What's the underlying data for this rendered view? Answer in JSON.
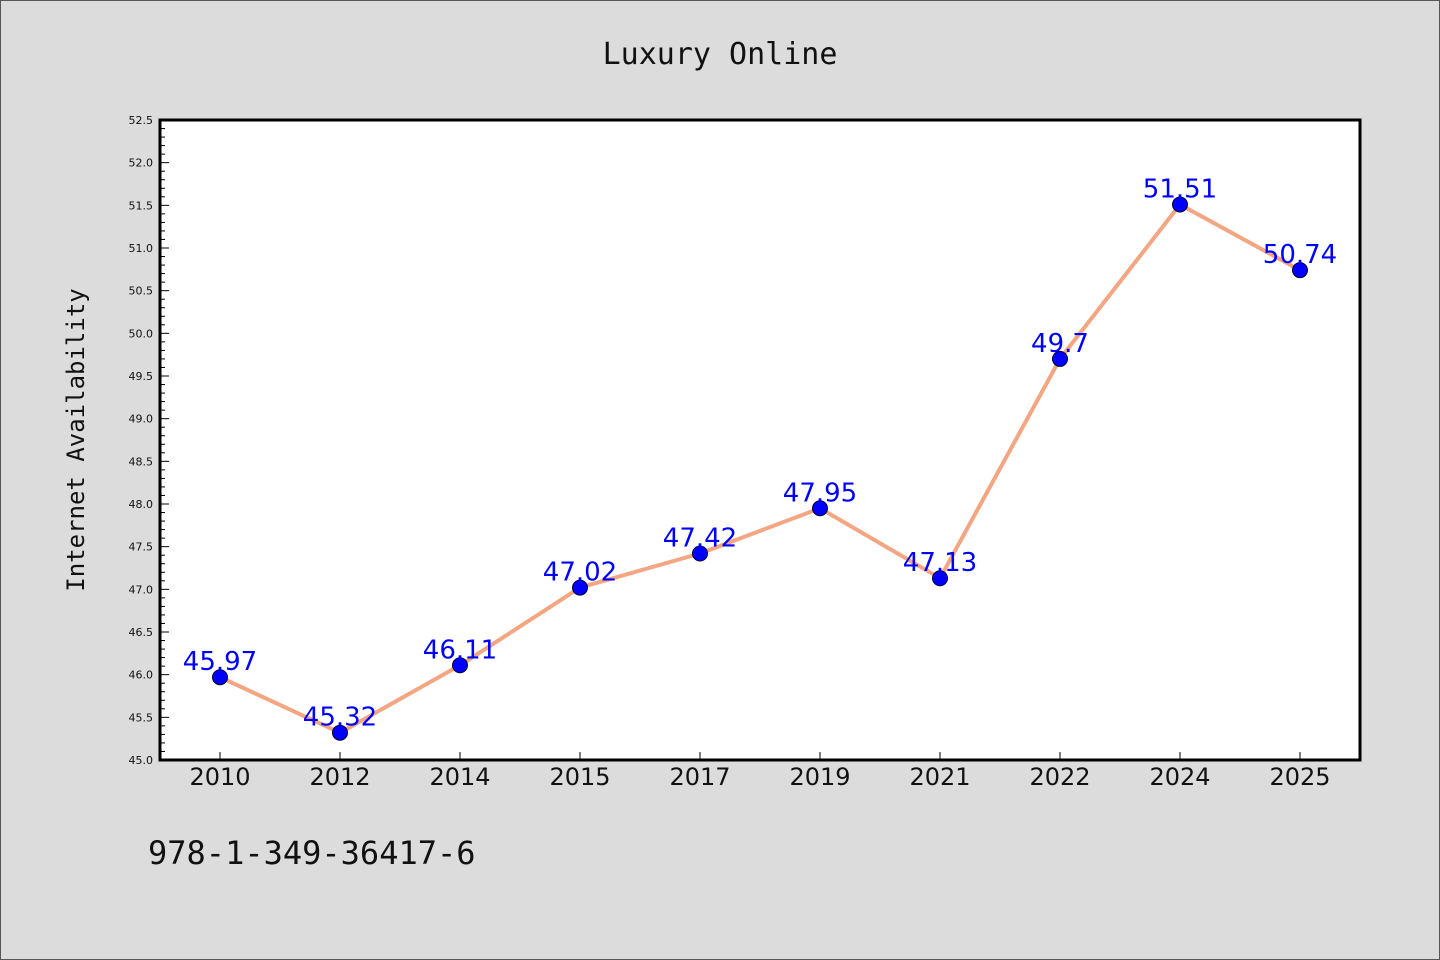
{
  "chart_data": {
    "type": "line",
    "title": "Luxury Online",
    "xlabel": "",
    "ylabel": "Internet Availability",
    "categories": [
      "2010",
      "2012",
      "2014",
      "2015",
      "2017",
      "2019",
      "2021",
      "2022",
      "2024",
      "2025"
    ],
    "series": [
      {
        "values": [
          45.97,
          45.32,
          46.11,
          47.02,
          47.42,
          47.95,
          47.13,
          49.7,
          51.51,
          50.74
        ],
        "data_labels": [
          "45.97",
          "45.32",
          "46.11",
          "47.02",
          "47.42",
          "47.95",
          "47.13",
          "49.7",
          "51.51",
          "50.74"
        ],
        "line_color": "#f4a582",
        "marker_color": "#0000ff"
      }
    ],
    "ylim": [
      45.0,
      52.5
    ],
    "y_ticks": [
      "45.0",
      "45.5",
      "46.0",
      "46.5",
      "47.0",
      "47.5",
      "48.0",
      "48.5",
      "49.0",
      "49.5",
      "50.0",
      "50.5",
      "51.0",
      "51.5",
      "52.0",
      "52.5"
    ],
    "grid": false,
    "legend": "none"
  },
  "footer": {
    "isbn": "978-1-349-36417-6"
  },
  "colors": {
    "background": "#dcdcdc",
    "plot_background": "#ffffff",
    "line": "#f4a582",
    "marker": "#0000ff",
    "data_label": "#0000ff"
  }
}
